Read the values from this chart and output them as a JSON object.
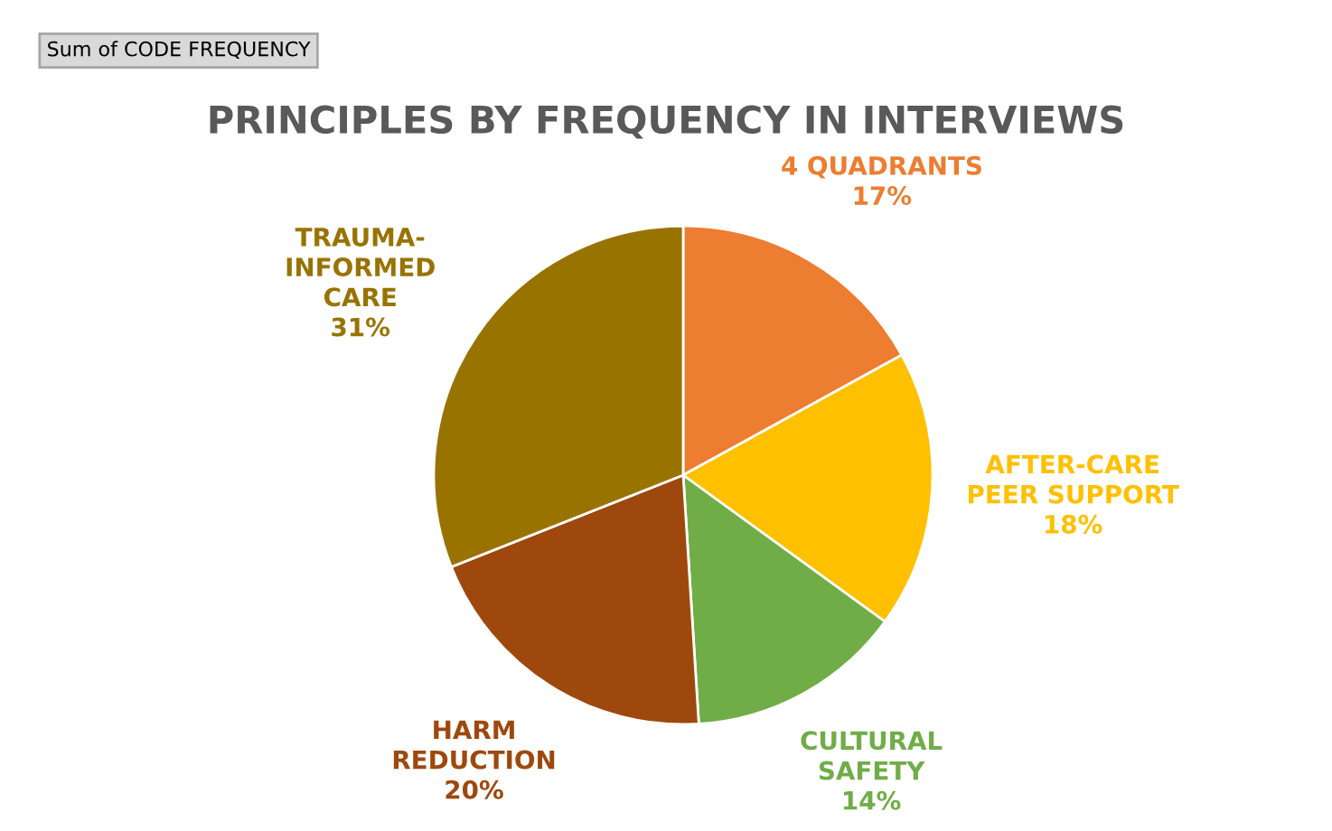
{
  "chart_data": {
    "type": "pie",
    "title": "PRINCIPLES BY FREQUENCY IN INTERVIEWS",
    "annotations": [
      "Sum of CODE FREQUENCY"
    ],
    "categories": [
      "4 QUADRANTS",
      "AFTER-CARE\nPEER SUPPORT",
      "CULTURAL\nSAFETY",
      "HARM\nREDUCTION",
      "TRAUMA-\nINFORMED\nCARE"
    ],
    "values": [
      17,
      18,
      14,
      20,
      31
    ],
    "value_labels": [
      "17%",
      "18%",
      "14%",
      "20%",
      "31%"
    ],
    "colors": [
      "#ed7d31",
      "#ffc000",
      "#70ad47",
      "#9e480e",
      "#997300"
    ]
  }
}
